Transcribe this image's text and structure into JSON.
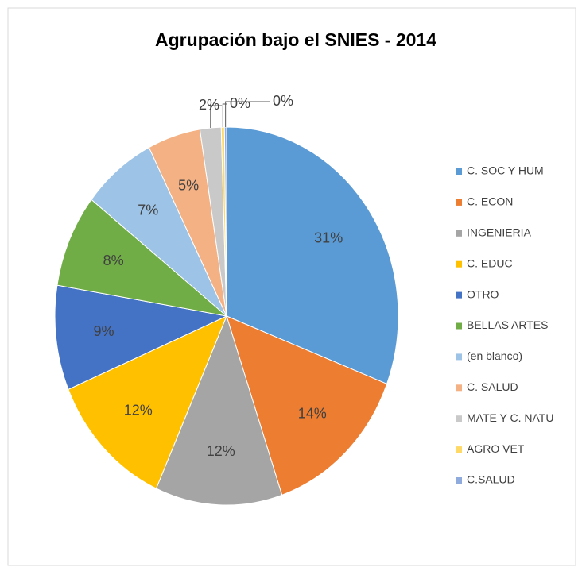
{
  "chart_data": {
    "type": "pie",
    "title": "Agrupación bajo el SNIES - 2014",
    "categories": [
      "C. SOC Y HUM",
      "C. ECON",
      "INGENIERIA",
      "C. EDUC",
      "OTRO",
      "BELLAS ARTES",
      "(en blanco)",
      "C. SALUD",
      "MATE Y C. NATU",
      "AGRO VET",
      "C.SALUD"
    ],
    "values": [
      31,
      14,
      12,
      12,
      9,
      8,
      7,
      5,
      2,
      0.3,
      0.2
    ],
    "value_labels": [
      "31%",
      "14%",
      "12%",
      "12%",
      "9%",
      "8%",
      "7%",
      "5%",
      "2%",
      "0%",
      "0%"
    ],
    "colors": [
      "#5b9bd5",
      "#ed7d31",
      "#a5a5a5",
      "#ffc000",
      "#4472c4",
      "#70ad47",
      "#9dc3e6",
      "#f4b183",
      "#c9c9c9",
      "#ffd966",
      "#8faadc"
    ],
    "legend": "right"
  }
}
